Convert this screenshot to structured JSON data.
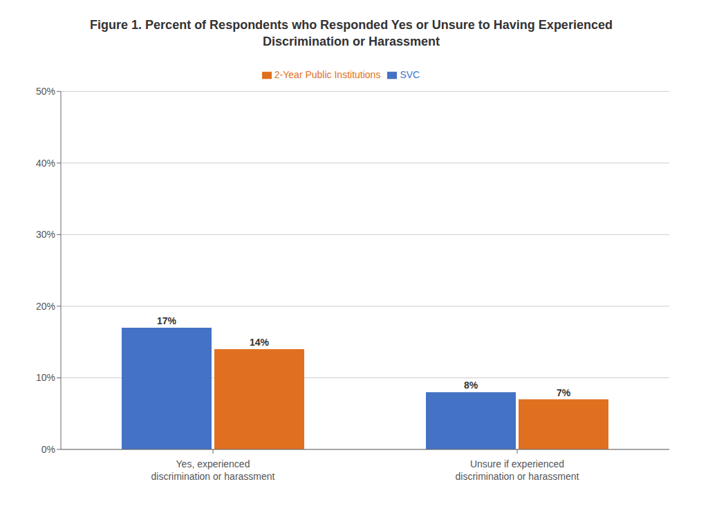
{
  "chart_data": {
    "type": "bar",
    "title": "Figure 1. Percent of Respondents who Responded Yes or Unsure to Having Experienced\nDiscrimination or Harassment",
    "categories": [
      "Yes, experienced\ndiscrimination or harassment",
      "Unsure if experienced\ndiscrimination or harassment"
    ],
    "series": [
      {
        "name": "SVC",
        "color": "#4472C4",
        "values": [
          17,
          8
        ],
        "value_labels": [
          "17%",
          "8%"
        ]
      },
      {
        "name": "2-Year Public Institutions",
        "color": "#E07020",
        "values": [
          14,
          7
        ],
        "value_labels": [
          "14%",
          "7%"
        ]
      }
    ],
    "ylim": [
      0,
      50
    ],
    "yticks": [
      {
        "value": 0,
        "label": "0%"
      },
      {
        "value": 10,
        "label": "10%"
      },
      {
        "value": 20,
        "label": "20%"
      },
      {
        "value": 30,
        "label": "30%"
      },
      {
        "value": 40,
        "label": "40%"
      },
      {
        "value": 50,
        "label": "50%"
      }
    ],
    "grid": true,
    "legend": "top",
    "data_labels": true
  }
}
